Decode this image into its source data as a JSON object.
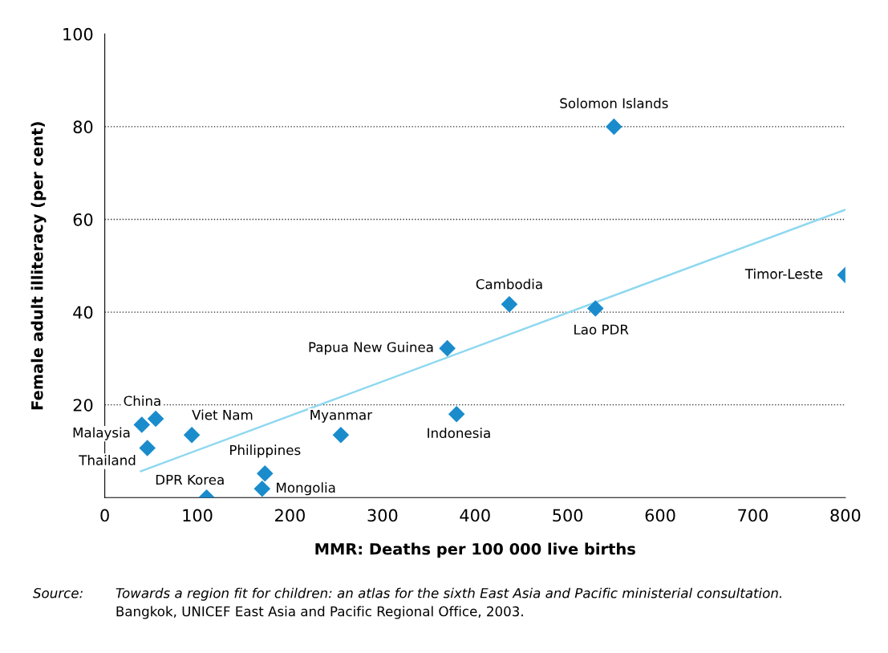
{
  "chart_data": {
    "type": "scatter",
    "xlabel": "MMR: Deaths per 100 000 live births",
    "ylabel": "Female adult illiteracy (per cent)",
    "xlim": [
      0,
      800
    ],
    "xticks": [
      0,
      100,
      200,
      300,
      400,
      500,
      600,
      700,
      800
    ],
    "ylim": [
      0,
      100
    ],
    "yticks": [
      20,
      40,
      60,
      80,
      100
    ],
    "grid": "y",
    "series": [
      {
        "marker": "diamond",
        "color": "#1a8ccc",
        "x": [
          550,
          800,
          437,
          530,
          370,
          380,
          255,
          173,
          170,
          110,
          94,
          55,
          40,
          46
        ],
        "values": [
          80,
          48,
          41.7,
          40.8,
          32.2,
          18,
          13.5,
          5.2,
          1.9,
          0,
          13.5,
          17,
          15.7,
          10.7
        ]
      },
      {
        "type": "line",
        "color": "#8fd8f0",
        "x": [
          39,
          800
        ],
        "values": [
          5.7,
          62.1
        ]
      }
    ],
    "annotations": [
      {
        "text": "Solomon Islands",
        "x": 550,
        "y": 80
      },
      {
        "text": "Timor-Leste",
        "x": 800,
        "y": 48
      },
      {
        "text": "Cambodia",
        "x": 437,
        "y": 41.7
      },
      {
        "text": "Lao PDR",
        "x": 530,
        "y": 40.8
      },
      {
        "text": "Papua New Guinea",
        "x": 370,
        "y": 32.2
      },
      {
        "text": "Indonesia",
        "x": 380,
        "y": 18
      },
      {
        "text": "Myanmar",
        "x": 255,
        "y": 13.5
      },
      {
        "text": "Philippines",
        "x": 173,
        "y": 5.2
      },
      {
        "text": "Mongolia",
        "x": 170,
        "y": 1.9
      },
      {
        "text": "DPR Korea",
        "x": 110,
        "y": 0
      },
      {
        "text": "Viet Nam",
        "x": 94,
        "y": 13.5
      },
      {
        "text": "China",
        "x": 55,
        "y": 17
      },
      {
        "text": "Malaysia",
        "x": 40,
        "y": 15.7
      },
      {
        "text": "Thailand",
        "x": 46,
        "y": 10.7
      },
      "Source:",
      "Towards a region fit for children: an atlas for the sixth East Asia and Pacific ministerial consultation.",
      "Bangkok, UNICEF East Asia and Pacific Regional Office, 2003."
    ]
  }
}
